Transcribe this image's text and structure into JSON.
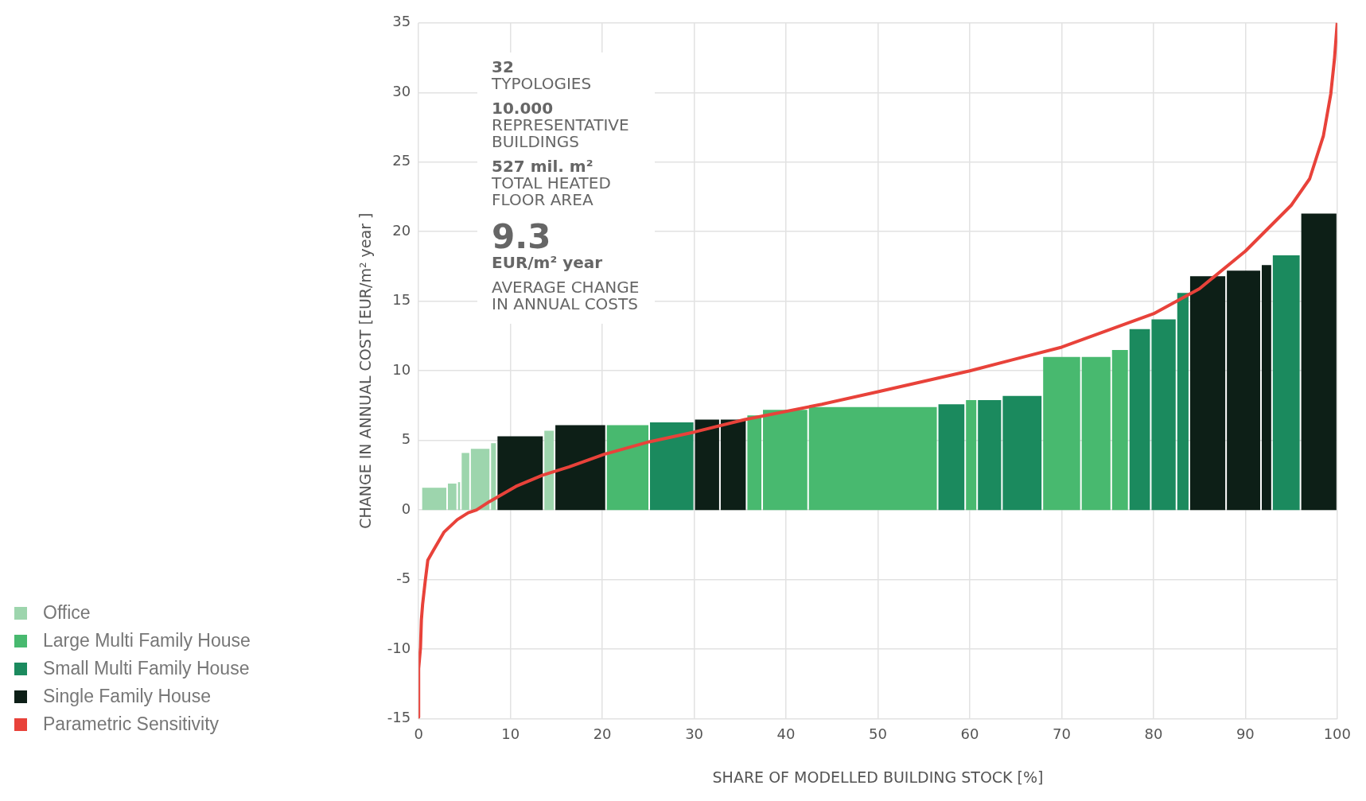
{
  "chart_data": {
    "type": "histogram",
    "xlabel": "SHARE OF MODELLED BUILDING STOCK [%]",
    "ylabel": "CHANGE IN ANNUAL COST [EUR/m² year ]",
    "bins": [
      0.3,
      3.1,
      4.2,
      4.6,
      5.6,
      7.8,
      8.5,
      13.6,
      14.8,
      20.4,
      25.1,
      30.0,
      32.8,
      35.7,
      37.4,
      42.4,
      56.5,
      59.5,
      60.8,
      63.5,
      67.9,
      72.1,
      75.4,
      77.3,
      79.7,
      82.5,
      83.9,
      87.9,
      91.7,
      92.9,
      96.0,
      100
    ],
    "series": [
      {
        "name": "Office",
        "color": "#9dd5ad",
        "values": [
          1.6,
          1.9,
          2.0,
          4.1,
          4.4,
          4.8,
          null,
          5.7,
          null,
          null,
          null,
          null,
          null,
          null,
          null,
          null,
          null,
          null,
          null,
          null,
          null,
          null,
          null,
          null,
          null,
          null,
          null,
          null,
          null,
          null,
          null
        ]
      },
      {
        "name": "Large Multi Family House",
        "color": "#48b96f",
        "values": [
          null,
          null,
          null,
          null,
          null,
          null,
          null,
          null,
          null,
          6.1,
          null,
          null,
          null,
          6.8,
          7.2,
          7.4,
          null,
          7.9,
          null,
          null,
          11.0,
          11.0,
          11.5,
          null,
          null,
          null,
          null,
          null,
          null,
          null,
          null
        ]
      },
      {
        "name": "Small Multi Family House",
        "color": "#1b8a5e",
        "values": [
          null,
          null,
          null,
          null,
          null,
          null,
          null,
          null,
          null,
          null,
          6.3,
          null,
          null,
          null,
          null,
          null,
          7.6,
          null,
          7.9,
          8.2,
          null,
          null,
          null,
          13.0,
          13.7,
          15.6,
          null,
          null,
          null,
          18.3,
          null
        ]
      },
      {
        "name": "Single Family House",
        "color": "#0d1f17",
        "values": [
          null,
          null,
          null,
          null,
          null,
          null,
          5.3,
          null,
          6.1,
          null,
          null,
          6.5,
          6.5,
          null,
          null,
          null,
          null,
          null,
          null,
          null,
          null,
          null,
          null,
          null,
          null,
          null,
          16.8,
          17.2,
          17.6,
          null,
          21.3
        ]
      },
      {
        "name": "Parametric Sensitivity",
        "type": "line",
        "color": "#e8423a",
        "x": [
          0,
          0,
          0.2,
          0.3,
          0.43,
          0.72,
          1.0,
          1.6,
          2.75,
          4.2,
          5.4,
          6.3,
          7.7,
          10.6,
          13.5,
          16.4,
          20.2,
          25.1,
          30.0,
          35.5,
          43.9,
          50,
          60,
          70,
          80,
          85,
          90,
          95,
          97,
          98.5,
          99.3,
          99.7,
          100
        ],
        "values": [
          -14.9,
          -11.4,
          -9.9,
          -7.9,
          -6.8,
          -5.1,
          -3.6,
          -2.9,
          -1.6,
          -0.7,
          -0.2,
          0,
          0.6,
          1.7,
          2.5,
          3.1,
          4.0,
          4.9,
          5.6,
          6.5,
          7.6,
          8.5,
          10.0,
          11.7,
          14.1,
          15.9,
          18.6,
          21.9,
          23.8,
          26.9,
          29.9,
          32.4,
          35
        ]
      }
    ],
    "xlim": [
      0,
      100
    ],
    "xticks": [
      0,
      10,
      20,
      30,
      40,
      50,
      60,
      70,
      80,
      90,
      100
    ],
    "ylim": [
      -15,
      35
    ],
    "yticks": [
      -15,
      -10,
      -5,
      0,
      5,
      10,
      15,
      20,
      25,
      30,
      35
    ],
    "grid": true,
    "legend": "bottom left",
    "marker": "none",
    "line_style": "solid",
    "annotations": [
      "32",
      "TYPOLOGIES",
      "10.000",
      "REPRESENTATIVE BUILDINGS",
      "527 mil. m²",
      "TOTAL HEATED FLOOR AREA",
      "9.3",
      "EUR/m² year",
      "AVERAGE CHANGE IN ANNUAL COSTS"
    ]
  }
}
